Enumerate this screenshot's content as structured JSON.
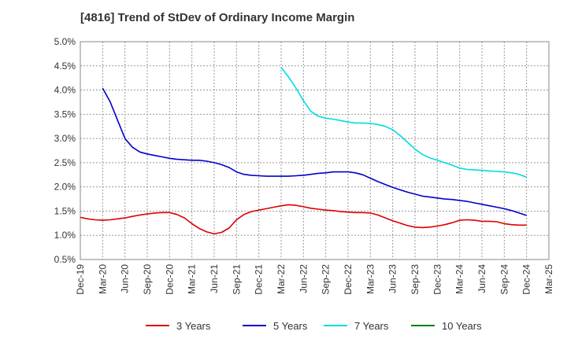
{
  "chart_data": {
    "type": "line",
    "title": "[4816]  Trend of StDev of Ordinary Income Margin",
    "y_ticks": [
      "0.5%",
      "1.0%",
      "1.5%",
      "2.0%",
      "2.5%",
      "3.0%",
      "3.5%",
      "4.0%",
      "4.5%",
      "5.0%"
    ],
    "ylim": [
      0.5,
      5.0
    ],
    "x_ticks": [
      "Dec-19",
      "Mar-20",
      "Jun-20",
      "Sep-20",
      "Dec-20",
      "Mar-21",
      "Jun-21",
      "Sep-21",
      "Dec-21",
      "Mar-22",
      "Jun-22",
      "Sep-22",
      "Dec-22",
      "Mar-23",
      "Jun-23",
      "Sep-23",
      "Dec-23",
      "Mar-24",
      "Jun-24",
      "Sep-24",
      "Dec-24",
      "Mar-25"
    ],
    "grid": true,
    "legend_position": "bottom",
    "series": [
      {
        "name": "3 Years",
        "color": "#dd0000",
        "points": [
          [
            "Dec-19",
            1.37
          ],
          [
            "Jan-20",
            1.34
          ],
          [
            "Feb-20",
            1.32
          ],
          [
            "Mar-20",
            1.31
          ],
          [
            "Apr-20",
            1.32
          ],
          [
            "May-20",
            1.34
          ],
          [
            "Jun-20",
            1.36
          ],
          [
            "Jul-20",
            1.39
          ],
          [
            "Aug-20",
            1.42
          ],
          [
            "Sep-20",
            1.44
          ],
          [
            "Oct-20",
            1.46
          ],
          [
            "Nov-20",
            1.47
          ],
          [
            "Dec-20",
            1.47
          ],
          [
            "Jan-21",
            1.43
          ],
          [
            "Feb-21",
            1.36
          ],
          [
            "Mar-21",
            1.24
          ],
          [
            "Apr-21",
            1.14
          ],
          [
            "May-21",
            1.07
          ],
          [
            "Jun-21",
            1.03
          ],
          [
            "Jul-21",
            1.06
          ],
          [
            "Aug-21",
            1.15
          ],
          [
            "Sep-21",
            1.32
          ],
          [
            "Oct-21",
            1.43
          ],
          [
            "Nov-21",
            1.49
          ],
          [
            "Dec-21",
            1.52
          ],
          [
            "Jan-22",
            1.55
          ],
          [
            "Feb-22",
            1.58
          ],
          [
            "Mar-22",
            1.61
          ],
          [
            "Apr-22",
            1.63
          ],
          [
            "May-22",
            1.62
          ],
          [
            "Jun-22",
            1.59
          ],
          [
            "Jul-22",
            1.56
          ],
          [
            "Aug-22",
            1.54
          ],
          [
            "Sep-22",
            1.52
          ],
          [
            "Oct-22",
            1.51
          ],
          [
            "Nov-22",
            1.49
          ],
          [
            "Dec-22",
            1.48
          ],
          [
            "Jan-23",
            1.47
          ],
          [
            "Feb-23",
            1.47
          ],
          [
            "Mar-23",
            1.46
          ],
          [
            "Apr-23",
            1.42
          ],
          [
            "May-23",
            1.36
          ],
          [
            "Jun-23",
            1.3
          ],
          [
            "Jul-23",
            1.25
          ],
          [
            "Aug-23",
            1.2
          ],
          [
            "Sep-23",
            1.17
          ],
          [
            "Oct-23",
            1.16
          ],
          [
            "Nov-23",
            1.17
          ],
          [
            "Dec-23",
            1.19
          ],
          [
            "Jan-24",
            1.22
          ],
          [
            "Feb-24",
            1.26
          ],
          [
            "Mar-24",
            1.31
          ],
          [
            "Apr-24",
            1.32
          ],
          [
            "May-24",
            1.31
          ],
          [
            "Jun-24",
            1.29
          ],
          [
            "Jul-24",
            1.29
          ],
          [
            "Aug-24",
            1.28
          ],
          [
            "Sep-24",
            1.24
          ],
          [
            "Oct-24",
            1.22
          ],
          [
            "Nov-24",
            1.21
          ],
          [
            "Dec-24",
            1.21
          ]
        ]
      },
      {
        "name": "5 Years",
        "color": "#0000cc",
        "points": [
          [
            "Mar-20",
            4.04
          ],
          [
            "Apr-20",
            3.76
          ],
          [
            "May-20",
            3.38
          ],
          [
            "Jun-20",
            3.0
          ],
          [
            "Jul-20",
            2.82
          ],
          [
            "Aug-20",
            2.72
          ],
          [
            "Sep-20",
            2.68
          ],
          [
            "Oct-20",
            2.65
          ],
          [
            "Nov-20",
            2.62
          ],
          [
            "Dec-20",
            2.59
          ],
          [
            "Jan-21",
            2.57
          ],
          [
            "Feb-21",
            2.56
          ],
          [
            "Mar-21",
            2.55
          ],
          [
            "Apr-21",
            2.55
          ],
          [
            "May-21",
            2.53
          ],
          [
            "Jun-21",
            2.5
          ],
          [
            "Jul-21",
            2.46
          ],
          [
            "Aug-21",
            2.4
          ],
          [
            "Sep-21",
            2.31
          ],
          [
            "Oct-21",
            2.26
          ],
          [
            "Nov-21",
            2.24
          ],
          [
            "Dec-21",
            2.23
          ],
          [
            "Jan-22",
            2.22
          ],
          [
            "Feb-22",
            2.22
          ],
          [
            "Mar-22",
            2.22
          ],
          [
            "Apr-22",
            2.22
          ],
          [
            "May-22",
            2.23
          ],
          [
            "Jun-22",
            2.24
          ],
          [
            "Jul-22",
            2.26
          ],
          [
            "Aug-22",
            2.28
          ],
          [
            "Sep-22",
            2.29
          ],
          [
            "Oct-22",
            2.31
          ],
          [
            "Nov-22",
            2.31
          ],
          [
            "Dec-22",
            2.31
          ],
          [
            "Jan-23",
            2.29
          ],
          [
            "Feb-23",
            2.25
          ],
          [
            "Mar-23",
            2.18
          ],
          [
            "Apr-23",
            2.11
          ],
          [
            "May-23",
            2.05
          ],
          [
            "Jun-23",
            1.99
          ],
          [
            "Jul-23",
            1.94
          ],
          [
            "Aug-23",
            1.89
          ],
          [
            "Sep-23",
            1.85
          ],
          [
            "Oct-23",
            1.81
          ],
          [
            "Nov-23",
            1.79
          ],
          [
            "Dec-23",
            1.77
          ],
          [
            "Jan-24",
            1.75
          ],
          [
            "Feb-24",
            1.74
          ],
          [
            "Mar-24",
            1.72
          ],
          [
            "Apr-24",
            1.7
          ],
          [
            "May-24",
            1.67
          ],
          [
            "Jun-24",
            1.64
          ],
          [
            "Jul-24",
            1.61
          ],
          [
            "Aug-24",
            1.58
          ],
          [
            "Sep-24",
            1.55
          ],
          [
            "Oct-24",
            1.51
          ],
          [
            "Nov-24",
            1.46
          ],
          [
            "Dec-24",
            1.41
          ]
        ]
      },
      {
        "name": "7 Years",
        "color": "#00dddd",
        "points": [
          [
            "Mar-22",
            4.47
          ],
          [
            "Apr-22",
            4.27
          ],
          [
            "May-22",
            4.04
          ],
          [
            "Jun-22",
            3.78
          ],
          [
            "Jul-22",
            3.56
          ],
          [
            "Aug-22",
            3.46
          ],
          [
            "Sep-22",
            3.42
          ],
          [
            "Oct-22",
            3.4
          ],
          [
            "Nov-22",
            3.37
          ],
          [
            "Dec-22",
            3.34
          ],
          [
            "Jan-23",
            3.32
          ],
          [
            "Feb-23",
            3.32
          ],
          [
            "Mar-23",
            3.31
          ],
          [
            "Apr-23",
            3.29
          ],
          [
            "May-23",
            3.25
          ],
          [
            "Jun-23",
            3.18
          ],
          [
            "Jul-23",
            3.06
          ],
          [
            "Aug-23",
            2.92
          ],
          [
            "Sep-23",
            2.78
          ],
          [
            "Oct-23",
            2.67
          ],
          [
            "Nov-23",
            2.6
          ],
          [
            "Dec-23",
            2.55
          ],
          [
            "Jan-24",
            2.5
          ],
          [
            "Feb-24",
            2.45
          ],
          [
            "Mar-24",
            2.39
          ],
          [
            "Apr-24",
            2.36
          ],
          [
            "May-24",
            2.35
          ],
          [
            "Jun-24",
            2.34
          ],
          [
            "Jul-24",
            2.33
          ],
          [
            "Aug-24",
            2.32
          ],
          [
            "Sep-24",
            2.31
          ],
          [
            "Oct-24",
            2.29
          ],
          [
            "Nov-24",
            2.26
          ],
          [
            "Dec-24",
            2.2
          ]
        ]
      },
      {
        "name": "10 Years",
        "color": "#008000",
        "points": []
      }
    ]
  }
}
